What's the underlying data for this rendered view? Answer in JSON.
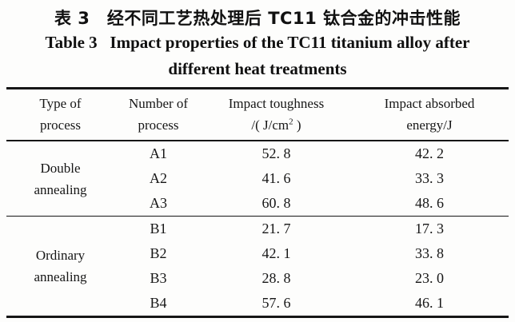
{
  "title": {
    "zh": "表 3　经不同工艺热处理后 TC11 钛合金的冲击性能",
    "en_line1": "Table 3   Impact properties of the TC11 titanium alloy after",
    "en_line2": "different heat treatments"
  },
  "table": {
    "headers": [
      {
        "line1": "Type of",
        "line2": "process"
      },
      {
        "line1": "Number of",
        "line2": "process"
      },
      {
        "line1": "Impact toughness",
        "line2_prefix": "/( J/cm",
        "line2_sup": "2",
        "line2_suffix": " )"
      },
      {
        "line1": "Impact absorbed",
        "line2": "energy/J"
      }
    ],
    "groups": [
      {
        "label_line1": "Double",
        "label_line2": "annealing",
        "rows": [
          {
            "no": "A1",
            "toughness": "52. 8",
            "energy": "42. 2"
          },
          {
            "no": "A2",
            "toughness": "41. 6",
            "energy": "33. 3"
          },
          {
            "no": "A3",
            "toughness": "60. 8",
            "energy": "48. 6"
          }
        ]
      },
      {
        "label_line1": "Ordinary",
        "label_line2": "annealing",
        "rows": [
          {
            "no": "B1",
            "toughness": "21. 7",
            "energy": "17. 3"
          },
          {
            "no": "B2",
            "toughness": "42. 1",
            "energy": "33. 8"
          },
          {
            "no": "B3",
            "toughness": "28. 8",
            "energy": "23. 0"
          },
          {
            "no": "B4",
            "toughness": "57. 6",
            "energy": "46. 1"
          }
        ]
      }
    ]
  },
  "chart_data": {
    "type": "table",
    "title": "表 3 经不同工艺热处理后 TC11 钛合金的冲击性能 / Table 3 Impact properties of the TC11 titanium alloy after different heat treatments",
    "columns": [
      "Type of process",
      "Number of process",
      "Impact toughness /(J/cm²)",
      "Impact absorbed energy/J"
    ],
    "rows": [
      [
        "Double annealing",
        "A1",
        52.8,
        42.2
      ],
      [
        "Double annealing",
        "A2",
        41.6,
        33.3
      ],
      [
        "Double annealing",
        "A3",
        60.8,
        48.6
      ],
      [
        "Ordinary annealing",
        "B1",
        21.7,
        17.3
      ],
      [
        "Ordinary annealing",
        "B2",
        42.1,
        33.8
      ],
      [
        "Ordinary annealing",
        "B3",
        28.8,
        23.0
      ],
      [
        "Ordinary annealing",
        "B4",
        57.6,
        46.1
      ]
    ]
  }
}
